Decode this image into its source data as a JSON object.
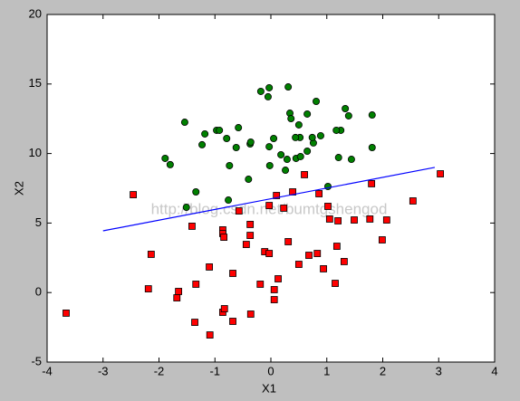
{
  "chart_data": {
    "type": "scatter",
    "xlabel": "X1",
    "ylabel": "X2",
    "watermark": "http://blog.csdn.net/bumtgshengod",
    "xlim": [
      -4,
      4
    ],
    "ylim": [
      -5,
      20
    ],
    "xticks": [
      -4,
      -3,
      -2,
      -1,
      0,
      1,
      2,
      3,
      4
    ],
    "yticks": [
      -5,
      0,
      5,
      10,
      15,
      20
    ],
    "series": [
      {
        "type": "scatter",
        "marker": "circle",
        "color": "#008000",
        "x": [
          -1.54,
          -1.18,
          -1.23,
          -0.97,
          -0.92,
          -0.58,
          -0.79,
          -0.62,
          -0.37,
          -0.18,
          -0.05,
          -0.03,
          0.31,
          0.34,
          0.36,
          0.5,
          0.05,
          -0.36,
          -0.03,
          0.18,
          0.29,
          0.45,
          0.65,
          0.76,
          0.65,
          0.81,
          0.74,
          0.89,
          0.52,
          0.44,
          -0.02,
          0.26,
          -0.4,
          -0.74,
          -1.8,
          -1.89,
          -1.34,
          -1.51,
          -0.76,
          0.53,
          1.21,
          1.25,
          1.17,
          1.33,
          1.39,
          1.81,
          1.81,
          1.44,
          1.02
        ],
        "values": [
          12.25,
          11.41,
          10.63,
          11.67,
          11.67,
          11.86,
          11.08,
          10.43,
          10.69,
          14.47,
          14.08,
          14.73,
          14.79,
          12.9,
          12.51,
          12.06,
          11.08,
          10.82,
          10.49,
          9.91,
          9.58,
          9.65,
          10.17,
          10.76,
          12.84,
          13.75,
          11.15,
          11.28,
          11.15,
          11.15,
          9.13,
          8.8,
          8.15,
          9.13,
          9.2,
          9.65,
          7.24,
          6.13,
          6.65,
          9.78,
          9.71,
          11.67,
          11.67,
          13.23,
          12.71,
          12.77,
          10.43,
          9.58,
          7.63
        ]
      },
      {
        "type": "scatter",
        "marker": "square",
        "color": "#ff0000",
        "x": [
          -3.66,
          -2.46,
          -2.14,
          -2.19,
          -1.68,
          -1.65,
          -1.36,
          -1.34,
          -1.41,
          -1.09,
          -1.1,
          -0.86,
          -0.83,
          -0.86,
          -0.86,
          -0.84,
          -0.68,
          -0.68,
          -0.57,
          -0.44,
          -0.37,
          -0.37,
          -0.36,
          -0.19,
          -0.11,
          -0.03,
          -0.03,
          0.1,
          0.06,
          0.06,
          0.13,
          0.23,
          0.31,
          0.39,
          0.5,
          0.6,
          0.68,
          0.83,
          0.86,
          0.94,
          1.02,
          1.05,
          1.15,
          1.2,
          1.18,
          1.31,
          1.49,
          1.77,
          1.8,
          1.99,
          2.07,
          2.54,
          3.03
        ],
        "values": [
          -1.48,
          7.04,
          2.75,
          0.27,
          -0.38,
          0.08,
          -2.14,
          0.6,
          4.77,
          -3.05,
          1.84,
          -1.42,
          -1.16,
          4.51,
          4.25,
          3.98,
          1.38,
          -2.07,
          5.87,
          3.46,
          4.11,
          4.9,
          -1.55,
          0.6,
          2.94,
          2.81,
          6.26,
          6.98,
          0.21,
          -0.51,
          0.99,
          6.07,
          3.66,
          7.24,
          2.03,
          8.48,
          2.68,
          2.81,
          7.11,
          1.71,
          6.2,
          5.29,
          0.66,
          5.16,
          3.33,
          2.23,
          5.22,
          5.29,
          7.83,
          3.79,
          5.22,
          6.59,
          8.54
        ]
      },
      {
        "type": "line",
        "color": "#0000ff",
        "x": [
          -3,
          2.93
        ],
        "values": [
          4.44,
          9.0
        ]
      }
    ]
  }
}
